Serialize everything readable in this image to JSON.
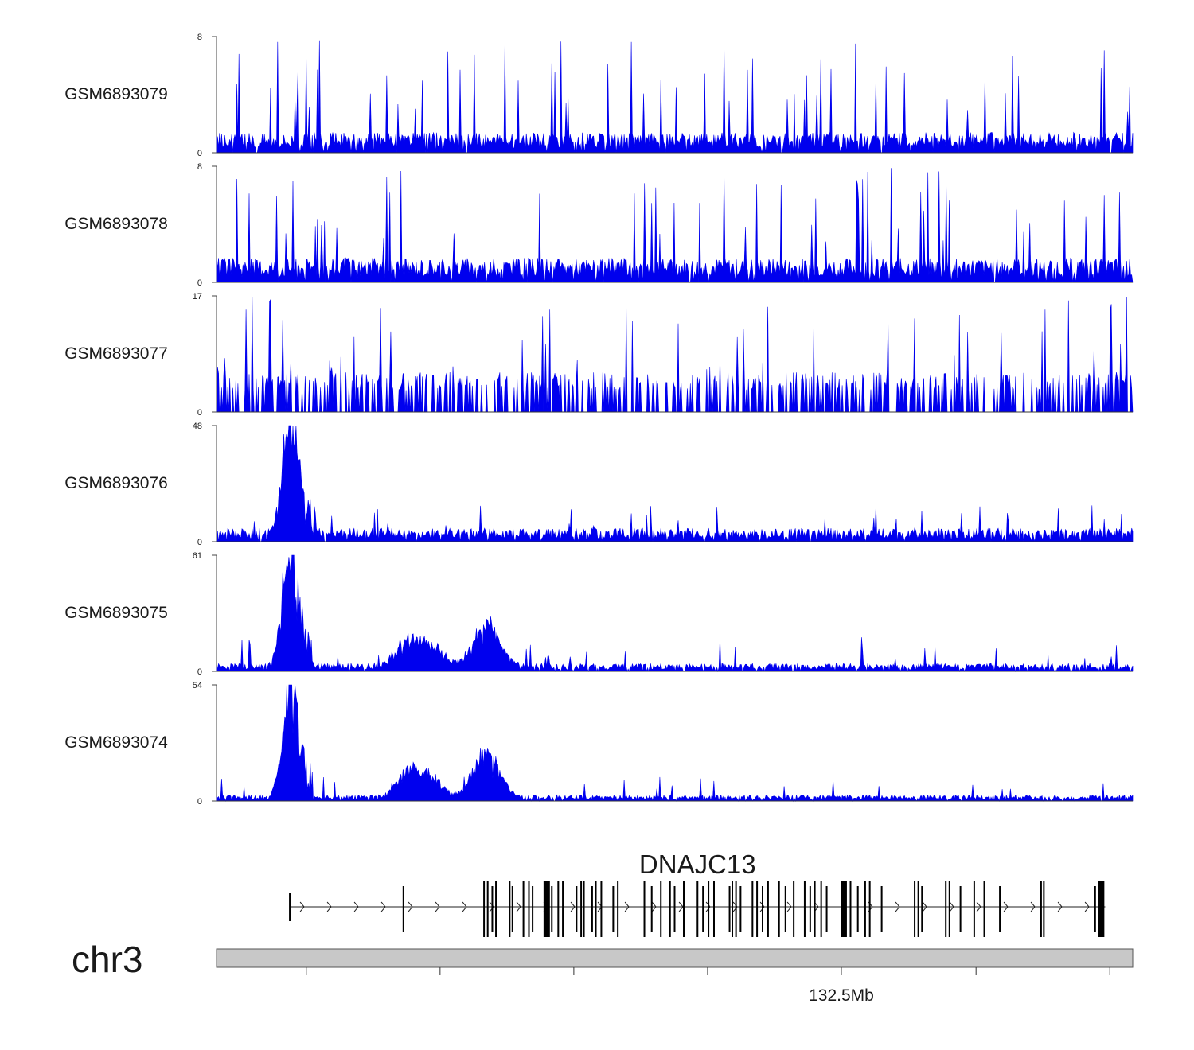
{
  "chart_data": {
    "type": "area",
    "fill_color": "#0000ee",
    "tracks": [
      {
        "name": "GSM6893079",
        "ymax": 8,
        "profile": "flat",
        "base": 1.0,
        "spikes": 60,
        "spike_max": 8,
        "seed": 79
      },
      {
        "name": "GSM6893078",
        "ymax": 8,
        "profile": "flat",
        "base": 1.2,
        "spikes": 55,
        "spike_max": 8,
        "seed": 78
      },
      {
        "name": "GSM6893077",
        "ymax": 17,
        "profile": "sparse",
        "base": 5.3,
        "spikes": 45,
        "spike_max": 17,
        "seed": 77
      },
      {
        "name": "GSM6893076",
        "ymax": 48,
        "profile": "peak",
        "base": 4,
        "spikes": 30,
        "spike_max": 15,
        "seed": 76
      },
      {
        "name": "GSM6893075",
        "ymax": 61,
        "profile": "peak2",
        "base": 3,
        "spikes": 30,
        "spike_max": 18,
        "seed": 75
      },
      {
        "name": "GSM6893074",
        "ymax": 54,
        "profile": "peak2",
        "base": 2,
        "spikes": 25,
        "spike_max": 12,
        "seed": 74
      }
    ],
    "gene": {
      "name": "DNAJC13",
      "strand": "+",
      "start": 0.08,
      "end": 0.97,
      "exons": [
        0.08,
        0.204,
        0.292,
        0.296,
        0.301,
        0.305,
        0.32,
        0.323,
        0.335,
        0.341,
        0.345,
        0.36,
        0.363,
        0.366,
        0.373,
        0.378,
        0.393,
        0.398,
        0.401,
        0.41,
        0.414,
        0.42,
        0.433,
        0.438,
        0.467,
        0.475,
        0.485,
        0.495,
        0.5,
        0.51,
        0.525,
        0.531,
        0.537,
        0.543,
        0.56,
        0.563,
        0.567,
        0.572,
        0.585,
        0.59,
        0.596,
        0.602,
        0.614,
        0.621,
        0.63,
        0.642,
        0.648,
        0.653,
        0.66,
        0.666,
        0.685,
        0.692,
        0.7,
        0.708,
        0.713,
        0.726,
        0.762,
        0.766,
        0.77,
        0.796,
        0.8,
        0.812,
        0.827,
        0.838,
        0.855,
        0.9,
        0.903,
        0.959,
        0.963,
        0.966
      ]
    },
    "chromosome": "chr3",
    "x_ticks": [
      0.098,
      0.244,
      0.39,
      0.536,
      0.682,
      0.829,
      0.975
    ],
    "x_tick_label": "132.5Mb",
    "x_tick_label_index": 4
  }
}
